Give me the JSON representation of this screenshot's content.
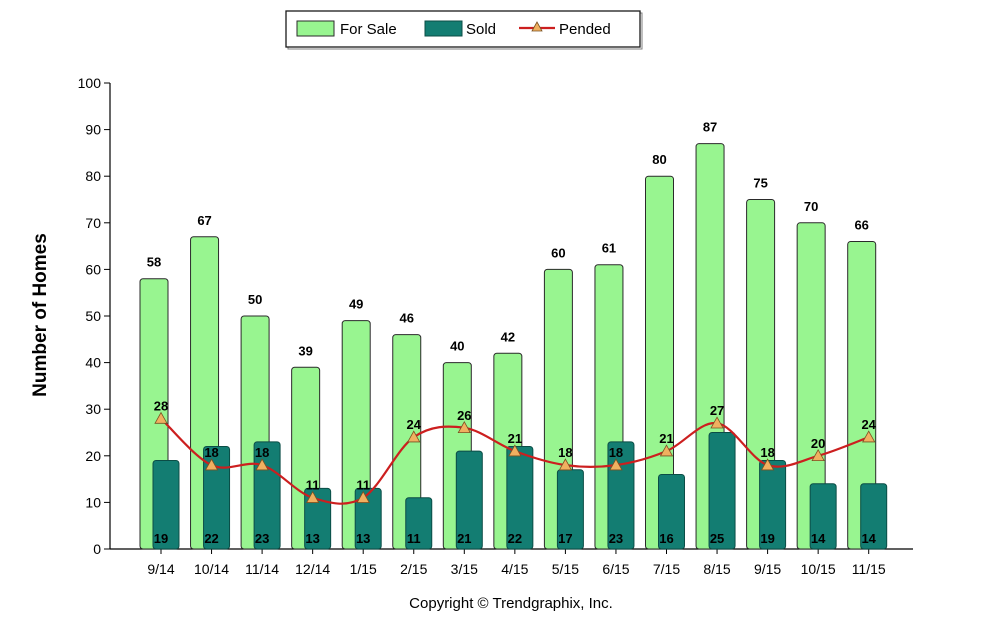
{
  "chart_data": {
    "type": "bar",
    "title": "",
    "xlabel": "",
    "ylabel": "Number of Homes",
    "ylim": [
      0,
      100
    ],
    "yticks": [
      0,
      10,
      20,
      30,
      40,
      50,
      60,
      70,
      80,
      90,
      100
    ],
    "categories": [
      "9/14",
      "10/14",
      "11/14",
      "12/14",
      "1/15",
      "2/15",
      "3/15",
      "4/15",
      "5/15",
      "6/15",
      "7/15",
      "8/15",
      "9/15",
      "10/15",
      "11/15"
    ],
    "series": [
      {
        "name": "For Sale",
        "kind": "bar",
        "color": "#98f590",
        "values": [
          58,
          67,
          50,
          39,
          49,
          46,
          40,
          42,
          60,
          61,
          80,
          87,
          75,
          70,
          66
        ]
      },
      {
        "name": "Sold",
        "kind": "bar",
        "color": "#137d72",
        "values": [
          19,
          22,
          23,
          13,
          13,
          11,
          21,
          22,
          17,
          23,
          16,
          25,
          19,
          14,
          14
        ]
      },
      {
        "name": "Pended",
        "kind": "line",
        "color": "#cc1f1f",
        "marker_color": "#f0b060",
        "values": [
          28,
          18,
          18,
          11,
          11,
          24,
          26,
          21,
          18,
          18,
          21,
          27,
          18,
          20,
          24
        ]
      }
    ],
    "legend": {
      "position": "top-center"
    },
    "grid": false,
    "copyright": "Copyright © Trendgraphix, Inc."
  }
}
